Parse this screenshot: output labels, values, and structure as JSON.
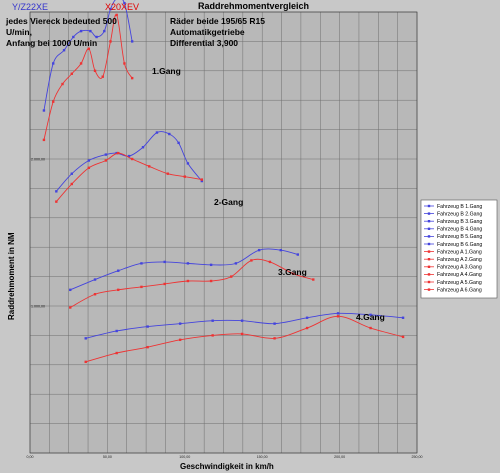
{
  "header": {
    "title": "Raddrehmomentvergleich",
    "car_a": "Y/Z22XE",
    "car_b": "X20XEV"
  },
  "notes": [
    "jedes Viereck bedeuted 500",
    "U/min,",
    "Anfang bei 1000 U/min",
    "Räder beide 195/65 R15",
    "Automatikgetriebe",
    "Differential 3,900"
  ],
  "gear_labels": [
    "1.Gang",
    "2-Gang",
    "3.Gang",
    "4.Gang"
  ],
  "colors": {
    "car_a": "#4444dd",
    "car_b": "#ee3333",
    "plot_bg": "#b8b8b8",
    "grid": "#6e6e6e"
  },
  "chart_data": {
    "type": "line",
    "title": "Raddrehmomentvergleich",
    "xlabel": "Geschwindigkeit in km/h",
    "ylabel": "Raddrehmoment in NM",
    "xlim": [
      0,
      250
    ],
    "ylim": [
      0,
      3000
    ],
    "x_ticks": [
      "0,00",
      "50,00",
      "100,00",
      "150,00",
      "200,00",
      "250,00"
    ],
    "y_ticks": [
      "1.000,00",
      "2.000,00"
    ],
    "grid": true,
    "legend_position": "right",
    "series": [
      {
        "name": "Fahrzeug B 1.Gang",
        "car": "a",
        "x": [
          9,
          15,
          22,
          28,
          33,
          39,
          43,
          48,
          52,
          56,
          61,
          66
        ],
        "y": [
          2330,
          2650,
          2740,
          2830,
          2870,
          2870,
          2830,
          2870,
          3020,
          3090,
          3060,
          2800
        ]
      },
      {
        "name": "Fahrzeug B 2.Gang",
        "car": "a",
        "x": [
          17,
          27,
          38,
          49,
          56,
          64,
          73,
          82,
          90,
          96,
          102,
          111
        ],
        "y": [
          1780,
          1900,
          1990,
          2030,
          2040,
          2020,
          2080,
          2180,
          2170,
          2110,
          1970,
          1850
        ]
      },
      {
        "name": "Fahrzeug B 3.Gang",
        "car": "a",
        "x": [
          26,
          42,
          57,
          72,
          87,
          102,
          117,
          133,
          148,
          162,
          173
        ],
        "y": [
          1110,
          1180,
          1240,
          1290,
          1300,
          1290,
          1280,
          1290,
          1380,
          1380,
          1350
        ]
      },
      {
        "name": "Fahrzeug B 4.Gang",
        "car": "a",
        "x": [
          36,
          56,
          76,
          97,
          118,
          137,
          158,
          179,
          199,
          220,
          241
        ],
        "y": [
          780,
          830,
          860,
          880,
          900,
          900,
          880,
          920,
          950,
          940,
          920
        ]
      },
      {
        "name": "Fahrzeug A 1.Gang",
        "car": "b",
        "x": [
          9,
          15,
          21,
          27,
          33,
          38,
          42,
          47,
          52,
          56,
          61,
          66
        ],
        "y": [
          2130,
          2390,
          2510,
          2580,
          2650,
          2750,
          2600,
          2560,
          2800,
          2980,
          2650,
          2550
        ]
      },
      {
        "name": "Fahrzeug A 2.Gang",
        "car": "b",
        "x": [
          17,
          27,
          38,
          49,
          57,
          66,
          77,
          89,
          100,
          111
        ],
        "y": [
          1710,
          1830,
          1940,
          1990,
          2040,
          2000,
          1950,
          1900,
          1880,
          1860
        ]
      },
      {
        "name": "Fahrzeug A 3.Gang",
        "car": "b",
        "x": [
          26,
          42,
          57,
          72,
          87,
          102,
          117,
          130,
          143,
          155,
          170,
          183
        ],
        "y": [
          990,
          1080,
          1110,
          1130,
          1150,
          1170,
          1170,
          1200,
          1310,
          1300,
          1220,
          1180
        ]
      },
      {
        "name": "Fahrzeug A 4.Gang",
        "car": "b",
        "x": [
          36,
          56,
          76,
          97,
          118,
          137,
          158,
          179,
          199,
          220,
          241
        ],
        "y": [
          620,
          680,
          720,
          770,
          800,
          810,
          780,
          850,
          930,
          850,
          790
        ]
      }
    ],
    "legend": [
      {
        "label": "Fahrzeug B 1.Gang",
        "car": "a"
      },
      {
        "label": "Fahrzeug B 2.Gang",
        "car": "a"
      },
      {
        "label": "Fahrzeug B 3.Gang",
        "car": "a"
      },
      {
        "label": "Fahrzeug B 4.Gang",
        "car": "a"
      },
      {
        "label": "Fahrzeug B 5.Gang",
        "car": "a"
      },
      {
        "label": "Fahrzeug B 6.Gang",
        "car": "a"
      },
      {
        "label": "Fahrzeug A 1.Gang",
        "car": "b"
      },
      {
        "label": "Fahrzeug A 2.Gang",
        "car": "b"
      },
      {
        "label": "Fahrzeug A 3.Gang",
        "car": "b"
      },
      {
        "label": "Fahrzeug A 4.Gang",
        "car": "b"
      },
      {
        "label": "Fahrzeug A 5.Gang",
        "car": "b"
      },
      {
        "label": "Fahrzeug A 6.Gang",
        "car": "b"
      }
    ]
  }
}
